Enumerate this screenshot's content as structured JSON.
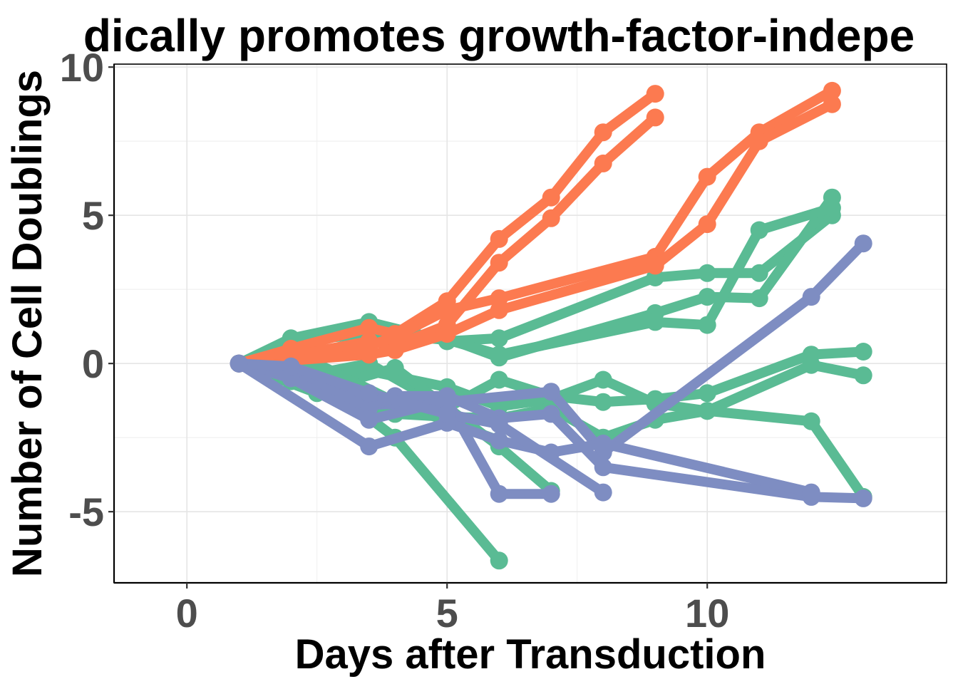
{
  "chart_data": {
    "type": "line",
    "title": "dically promotes growth-factor-indepe",
    "xlabel": "Days after Transduction",
    "ylabel": "Number of Cell Doublings",
    "xlim": [
      -1.4,
      14.6
    ],
    "ylim": [
      -7.4,
      10.1
    ],
    "x_ticks": [
      0,
      5,
      10
    ],
    "y_ticks": [
      -5,
      0,
      5,
      10
    ],
    "x_tick_labels": [
      "0",
      "5",
      "10"
    ],
    "y_tick_labels": [
      "-5",
      "0",
      "5",
      "10"
    ],
    "grid": true,
    "legend": "none",
    "colors": {
      "orange": "#fc7a50",
      "green": "#5abb94",
      "purple": "#7e8dc2"
    },
    "series": [
      {
        "color": "#5abb94",
        "x": [
          1,
          2,
          3.5,
          5,
          6,
          9,
          10,
          11,
          12.4
        ],
        "y": [
          0,
          0.85,
          1.4,
          0.75,
          0.85,
          2.9,
          3.05,
          3.05,
          5.0
        ]
      },
      {
        "color": "#5abb94",
        "x": [
          1,
          2,
          3.5,
          5,
          6,
          9,
          10,
          11,
          12.4
        ],
        "y": [
          0,
          0.8,
          1.2,
          0.85,
          0.2,
          1.7,
          2.25,
          2.2,
          5.6
        ]
      },
      {
        "color": "#5abb94",
        "x": [
          1,
          2,
          3.5,
          5,
          6,
          9,
          10,
          11,
          12.4
        ],
        "y": [
          0,
          0.75,
          1.0,
          0.8,
          0.3,
          1.4,
          1.3,
          4.5,
          5.25
        ]
      },
      {
        "color": "#5abb94",
        "x": [
          1,
          2,
          3.5,
          5,
          6,
          7,
          8,
          9,
          10,
          12,
          13
        ],
        "y": [
          0,
          -0.5,
          0.0,
          -1.5,
          -0.55,
          -1.1,
          -1.3,
          -1.2,
          -1.0,
          0.3,
          0.4
        ]
      },
      {
        "color": "#5abb94",
        "x": [
          1,
          2,
          3.5,
          5,
          6,
          7,
          8,
          9,
          10,
          12,
          13
        ],
        "y": [
          0,
          -0.6,
          -0.25,
          -0.8,
          -1.45,
          -1.2,
          -0.55,
          -1.35,
          -1.6,
          -0.05,
          -0.4
        ]
      },
      {
        "color": "#5abb94",
        "x": [
          1,
          2.5,
          4,
          5,
          6,
          7,
          8,
          9,
          10,
          12,
          13
        ],
        "y": [
          0,
          -1.0,
          -1.7,
          -1.8,
          -1.85,
          -1.5,
          -2.5,
          -1.9,
          -1.6,
          -1.95,
          -4.5
        ]
      },
      {
        "color": "#5abb94",
        "x": [
          1,
          2.5,
          4,
          6
        ],
        "y": [
          0,
          -0.5,
          -2.5,
          -6.65
        ]
      },
      {
        "color": "#5abb94",
        "x": [
          1,
          2.5,
          4,
          6,
          7
        ],
        "y": [
          0,
          -0.9,
          -0.15,
          -2.8,
          -4.3
        ]
      },
      {
        "color": "#5abb94",
        "x": [
          1,
          2.5,
          4,
          6
        ],
        "y": [
          0,
          0.0,
          -1.3,
          -2.6
        ]
      },
      {
        "color": "#fc7a50",
        "x": [
          1,
          2,
          3.5,
          4,
          5,
          6,
          7,
          8,
          9
        ],
        "y": [
          0,
          0.5,
          1.2,
          1.0,
          2.1,
          4.2,
          5.6,
          7.8,
          9.1
        ]
      },
      {
        "color": "#fc7a50",
        "x": [
          1,
          2,
          3.5,
          4,
          5,
          6,
          7,
          8,
          9
        ],
        "y": [
          0,
          0.25,
          0.75,
          0.6,
          1.3,
          3.4,
          4.9,
          6.75,
          8.3
        ]
      },
      {
        "color": "#fc7a50",
        "x": [
          1,
          2,
          3.5,
          4,
          5,
          6,
          9,
          10,
          11,
          12.4
        ],
        "y": [
          0,
          0.3,
          0.6,
          0.9,
          1.8,
          2.2,
          3.6,
          6.3,
          7.8,
          9.2
        ]
      },
      {
        "color": "#fc7a50",
        "x": [
          1,
          2,
          3.5,
          4,
          5,
          6,
          9,
          10,
          11,
          12.4
        ],
        "y": [
          0,
          0.1,
          0.3,
          0.45,
          1.0,
          1.8,
          3.3,
          4.7,
          7.5,
          8.75
        ]
      },
      {
        "color": "#7e8dc2",
        "x": [
          1,
          2,
          3.5,
          5,
          7,
          8,
          12,
          13
        ],
        "y": [
          0,
          -0.15,
          -1.4,
          -1.3,
          -0.95,
          -3.0,
          2.25,
          4.05
        ]
      },
      {
        "color": "#7e8dc2",
        "x": [
          1,
          2,
          3.5,
          4,
          5,
          6,
          7,
          8,
          12,
          13
        ],
        "y": [
          0,
          -0.3,
          -1.5,
          -1.1,
          -1.1,
          -1.85,
          -1.7,
          -3.5,
          -4.5,
          -4.55
        ]
      },
      {
        "color": "#7e8dc2",
        "x": [
          1,
          2,
          3.5,
          5,
          6,
          7
        ],
        "y": [
          0,
          -0.5,
          -1.9,
          -1.25,
          -4.4,
          -4.4
        ]
      },
      {
        "color": "#7e8dc2",
        "x": [
          1,
          3.5,
          5,
          6,
          7,
          8,
          12
        ],
        "y": [
          0,
          -2.8,
          -2.0,
          -2.6,
          -3.0,
          -2.7,
          -4.35
        ]
      },
      {
        "color": "#7e8dc2",
        "x": [
          1,
          2,
          3.5,
          5,
          6,
          8
        ],
        "y": [
          0,
          -0.1,
          -1.0,
          -1.7,
          -2.05,
          -4.35
        ]
      }
    ]
  }
}
